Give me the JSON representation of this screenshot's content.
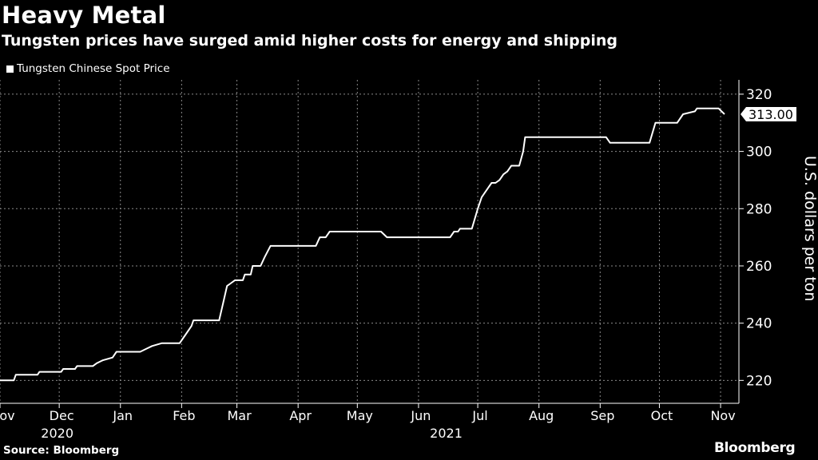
{
  "header": {
    "title": "Heavy Metal",
    "subtitle": "Tungsten prices have surged amid higher costs for energy and shipping"
  },
  "footer": {
    "source": "Source: Bloomberg",
    "brand": "Bloomberg"
  },
  "colors": {
    "background": "#000000",
    "line": "#ffffff",
    "grid": "#8a8a8a"
  },
  "chart_data": {
    "type": "line",
    "ylabel": "U.S. dollars per ton",
    "ylim": [
      212,
      325
    ],
    "yticks": [
      220,
      240,
      260,
      280,
      300,
      320
    ],
    "grid": true,
    "legend_position": "top-left",
    "last_value_label": "313.00",
    "month_ticks": [
      {
        "label": "Nov",
        "date": "2020-11-01"
      },
      {
        "label": "Dec",
        "date": "2020-12-01"
      },
      {
        "label": "Jan",
        "date": "2021-01-01"
      },
      {
        "label": "Feb",
        "date": "2021-02-01"
      },
      {
        "label": "Mar",
        "date": "2021-03-01"
      },
      {
        "label": "Apr",
        "date": "2021-04-01"
      },
      {
        "label": "May",
        "date": "2021-05-01"
      },
      {
        "label": "Jun",
        "date": "2021-06-01"
      },
      {
        "label": "Jul",
        "date": "2021-07-01"
      },
      {
        "label": "Aug",
        "date": "2021-08-01"
      },
      {
        "label": "Sep",
        "date": "2021-09-01"
      },
      {
        "label": "Oct",
        "date": "2021-10-01"
      },
      {
        "label": "Nov",
        "date": "2021-11-01"
      }
    ],
    "year_labels": [
      {
        "label": "2020",
        "date": "2020-11-30"
      },
      {
        "label": "2021",
        "date": "2021-06-15"
      }
    ],
    "series": [
      {
        "name": "Tungsten Chinese Spot Price",
        "points": [
          [
            "2020-11-01",
            220
          ],
          [
            "2020-11-08",
            220
          ],
          [
            "2020-11-09",
            222
          ],
          [
            "2020-11-20",
            222
          ],
          [
            "2020-11-21",
            223
          ],
          [
            "2020-12-02",
            223
          ],
          [
            "2020-12-03",
            224
          ],
          [
            "2020-12-09",
            224
          ],
          [
            "2020-12-10",
            225
          ],
          [
            "2020-12-18",
            225
          ],
          [
            "2020-12-20",
            226
          ],
          [
            "2020-12-23",
            227
          ],
          [
            "2020-12-28",
            228
          ],
          [
            "2020-12-30",
            230
          ],
          [
            "2021-01-09",
            230
          ],
          [
            "2021-01-11",
            230
          ],
          [
            "2021-01-14",
            231
          ],
          [
            "2021-01-17",
            232
          ],
          [
            "2021-01-22",
            233
          ],
          [
            "2021-01-31",
            233
          ],
          [
            "2021-02-03",
            236
          ],
          [
            "2021-02-06",
            239
          ],
          [
            "2021-02-07",
            241
          ],
          [
            "2021-02-20",
            241
          ],
          [
            "2021-02-22",
            247
          ],
          [
            "2021-02-24",
            253
          ],
          [
            "2021-02-26",
            254
          ],
          [
            "2021-02-28",
            255
          ],
          [
            "2021-03-04",
            255
          ],
          [
            "2021-03-05",
            257
          ],
          [
            "2021-03-08",
            257
          ],
          [
            "2021-03-09",
            260
          ],
          [
            "2021-03-13",
            260
          ],
          [
            "2021-03-15",
            263
          ],
          [
            "2021-03-18",
            267
          ],
          [
            "2021-04-10",
            267
          ],
          [
            "2021-04-12",
            270
          ],
          [
            "2021-04-15",
            270
          ],
          [
            "2021-04-17",
            272
          ],
          [
            "2021-05-13",
            272
          ],
          [
            "2021-05-16",
            270
          ],
          [
            "2021-06-17",
            270
          ],
          [
            "2021-06-19",
            272
          ],
          [
            "2021-06-21",
            272
          ],
          [
            "2021-06-22",
            273
          ],
          [
            "2021-06-28",
            273
          ],
          [
            "2021-07-01",
            280
          ],
          [
            "2021-07-03",
            284
          ],
          [
            "2021-07-06",
            287
          ],
          [
            "2021-07-08",
            289
          ],
          [
            "2021-07-10",
            289
          ],
          [
            "2021-07-12",
            290
          ],
          [
            "2021-07-14",
            292
          ],
          [
            "2021-07-16",
            293
          ],
          [
            "2021-07-18",
            295
          ],
          [
            "2021-07-22",
            295
          ],
          [
            "2021-07-24",
            300
          ],
          [
            "2021-07-25",
            305
          ],
          [
            "2021-09-04",
            305
          ],
          [
            "2021-09-06",
            303
          ],
          [
            "2021-09-26",
            303
          ],
          [
            "2021-09-29",
            310
          ],
          [
            "2021-10-10",
            310
          ],
          [
            "2021-10-13",
            313
          ],
          [
            "2021-10-19",
            314
          ],
          [
            "2021-10-20",
            315
          ],
          [
            "2021-10-31",
            315
          ],
          [
            "2021-11-03",
            313
          ]
        ]
      }
    ]
  }
}
